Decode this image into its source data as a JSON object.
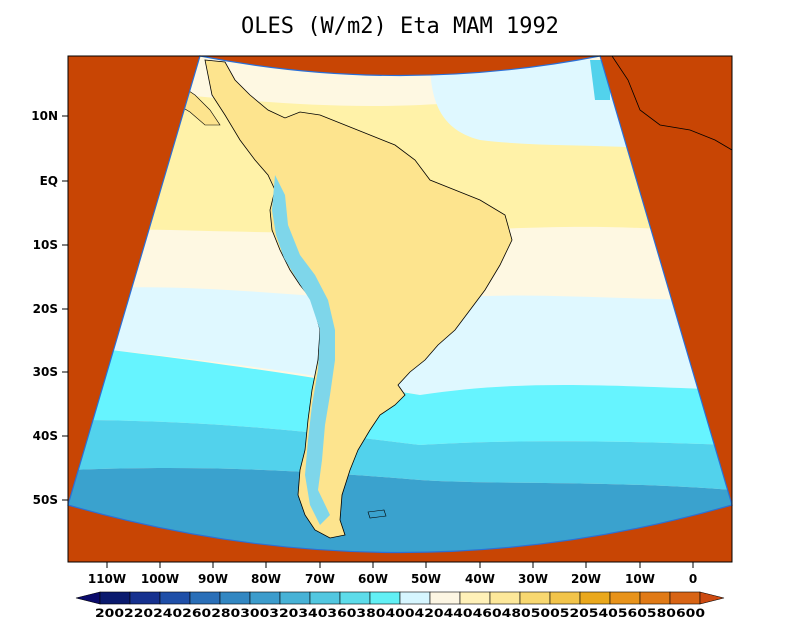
{
  "title": "OLES (W/m2) Eta MAM 1992",
  "lat_labels": [
    "10N",
    "EQ",
    "10S",
    "20S",
    "30S",
    "40S",
    "50S"
  ],
  "lon_labels": [
    "110W",
    "100W",
    "90W",
    "80W",
    "70W",
    "60W",
    "50W",
    "40W",
    "30W",
    "20W",
    "10W",
    "0"
  ],
  "colorbar": {
    "label_text": "200220240260280300320340360380400420440460480500520540560580600",
    "levels": [
      200,
      220,
      240,
      260,
      280,
      300,
      320,
      340,
      360,
      380,
      400,
      420,
      440,
      460,
      480,
      500,
      520,
      540,
      560,
      580,
      600
    ],
    "colors": [
      "#0a1a6e",
      "#16318f",
      "#1f4fa8",
      "#2a6fb8",
      "#3287c2",
      "#3c9ccc",
      "#47b2d6",
      "#52c7e0",
      "#5ddcea",
      "#62f0f5",
      "#d6f6ff",
      "#fdf6e3",
      "#fff1b8",
      "#fde89a",
      "#f8d870",
      "#f2c44a",
      "#eaa81c",
      "#e8931a",
      "#e07a16",
      "#d86414"
    ],
    "under_color": "#0a0a6a",
    "over_color": "#cc4a10"
  },
  "colors": {
    "background": "#c84504",
    "ocean_north": "#fef8e2",
    "ocean_warm": "#fff2a8",
    "ocean_pale": "#dff8ff",
    "ocean_cyan": "#66f4ff",
    "ocean_mid": "#52d2ec",
    "ocean_deep": "#3aa2ce",
    "land": "#fde48e",
    "andes": "#7ed6ea"
  }
}
